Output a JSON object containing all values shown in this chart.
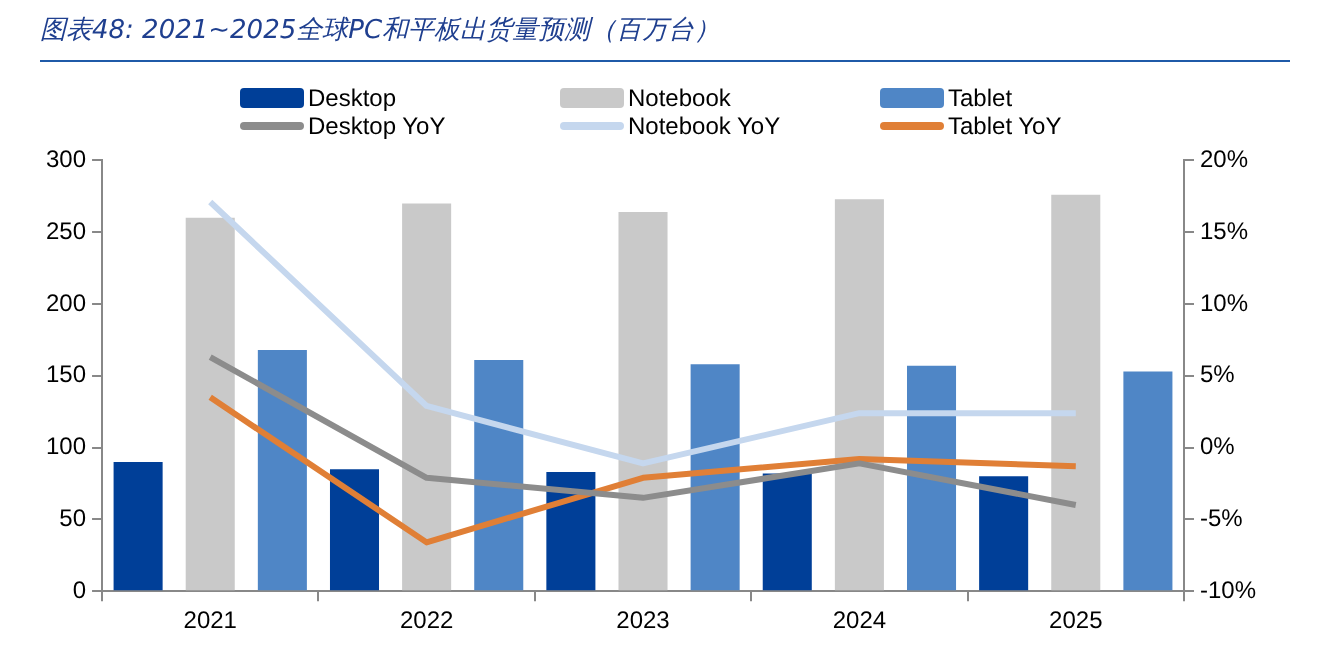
{
  "chart_data": {
    "type": "bar",
    "title": "图表48:  2021~2025全球PC和平板出货量预测（百万台）",
    "categories": [
      "2021",
      "2022",
      "2023",
      "2024",
      "2025"
    ],
    "series": [
      {
        "name": "Desktop",
        "color": "#003f98",
        "values": [
          90,
          85,
          83,
          82,
          80
        ]
      },
      {
        "name": "Notebook",
        "color": "#c9c9c9",
        "values": [
          260,
          270,
          264,
          273,
          276
        ]
      },
      {
        "name": "Tablet",
        "color": "#4f86c6",
        "values": [
          168,
          161,
          158,
          157,
          153
        ]
      },
      {
        "name": "Desktop YoY",
        "type": "line",
        "axis": "y2",
        "color": "#8c8c8c",
        "values": [
          6.3,
          -2.1,
          -3.5,
          -1.1,
          -4.0
        ]
      },
      {
        "name": "Notebook YoY",
        "type": "line",
        "axis": "y2",
        "color": "#c5d7ee",
        "values": [
          17.1,
          2.9,
          -1.1,
          2.4,
          2.4
        ]
      },
      {
        "name": "Tablet YoY",
        "type": "line",
        "axis": "y2",
        "color": "#e07f36",
        "values": [
          3.5,
          -6.6,
          -2.1,
          -0.8,
          -1.3
        ]
      }
    ],
    "ylim": [
      0,
      300
    ],
    "yticks": [
      0,
      50,
      100,
      150,
      200,
      250,
      300
    ],
    "y2lim": [
      -10,
      20
    ],
    "y2ticks": [
      {
        "value": -10,
        "label": "-10%"
      },
      {
        "value": -5,
        "label": "-5%"
      },
      {
        "value": 0,
        "label": "0%"
      },
      {
        "value": 5,
        "label": "5%"
      },
      {
        "value": 10,
        "label": "10%"
      },
      {
        "value": 15,
        "label": "15%"
      },
      {
        "value": 20,
        "label": "20%"
      }
    ],
    "grid": false,
    "legend": "top",
    "marker": "none"
  }
}
